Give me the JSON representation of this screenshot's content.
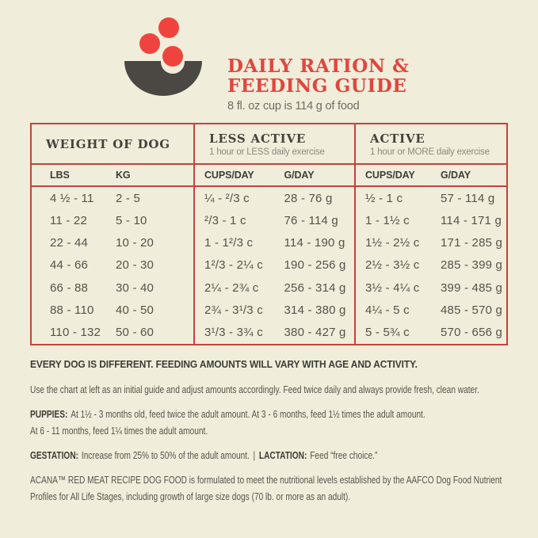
{
  "colors": {
    "background": "#F0EDDA",
    "accent_red": "#E2453E",
    "border_red": "#C7413C",
    "kibble_red": "#EF443D",
    "bowl_gray": "#4B4843",
    "heading_dark": "#3E3C37",
    "body_gray": "#55534B"
  },
  "logo": {
    "name": "bowl-with-kibble"
  },
  "header": {
    "title_line1": "DAILY RATION &",
    "title_line2": "FEEDING GUIDE",
    "subtitle": "8 fl. oz cup is 114 g of food"
  },
  "table": {
    "col_groups": [
      {
        "label": "WEIGHT OF DOG",
        "sublabel": ""
      },
      {
        "label": "LESS ACTIVE",
        "sublabel": "1 hour or LESS daily exercise"
      },
      {
        "label": "ACTIVE",
        "sublabel": "1 hour or MORE daily exercise"
      }
    ],
    "columns": [
      "LBS",
      "KG",
      "CUPS/DAY",
      "G/DAY",
      "CUPS/DAY",
      "G/DAY"
    ],
    "rows": [
      [
        "4 ½ - 11",
        "2 - 5",
        "¼ - ²/3 c",
        "28 - 76 g",
        "½ - 1 c",
        "57 - 114 g"
      ],
      [
        "11 - 22",
        "5 - 10",
        "²/3 - 1 c",
        "76 - 114 g",
        "1 - 1½ c",
        "114 - 171 g"
      ],
      [
        "22 - 44",
        "10 - 20",
        "1 - 1²/3 c",
        "114 - 190 g",
        "1½ - 2½ c",
        "171 - 285 g"
      ],
      [
        "44 - 66",
        "20 - 30",
        "1²/3 - 2¼ c",
        "190 - 256 g",
        "2½ - 3½ c",
        "285 - 399 g"
      ],
      [
        "66 - 88",
        "30 - 40",
        "2¼ - 2¾ c",
        "256 - 314 g",
        "3½ - 4¼ c",
        "399 - 485 g"
      ],
      [
        "88 - 110",
        "40 - 50",
        "2¾ - 3¹/3 c",
        "314 - 380 g",
        "4¼ - 5 c",
        "485 - 570 g"
      ],
      [
        "110 - 132",
        "50 - 60",
        "3¹/3 - 3¾ c",
        "380 - 427 g",
        "5 - 5¾ c",
        "570 - 656 g"
      ]
    ]
  },
  "notes": {
    "heading": "EVERY DOG IS DIFFERENT. FEEDING AMOUNTS WILL VARY WITH AGE AND ACTIVITY.",
    "intro": "Use the chart at left as an initial guide and adjust amounts accordingly. Feed twice daily and always provide fresh, clean water.",
    "puppies_label": "PUPPIES:",
    "puppies_line1": "At 1½ - 3 months old, feed twice the adult amount. At 3 - 6 months, feed 1½ times the adult amount.",
    "puppies_line2": "At 6 - 11 months, feed 1¼ times the adult amount.",
    "gestation_label": "GESTATION:",
    "gestation_text": "Increase from 25% to 50% of the adult amount.",
    "separator": "|",
    "lactation_label": "LACTATION:",
    "lactation_text": "Feed “free choice.”",
    "aafco_line1": "ACANA™ RED MEAT RECIPE DOG FOOD is formulated to meet the nutritional levels established by the AAFCO Dog Food Nutrient",
    "aafco_line2": "Profiles for All Life Stages, including growth of large size dogs (70 lb. or more as an adult)."
  }
}
